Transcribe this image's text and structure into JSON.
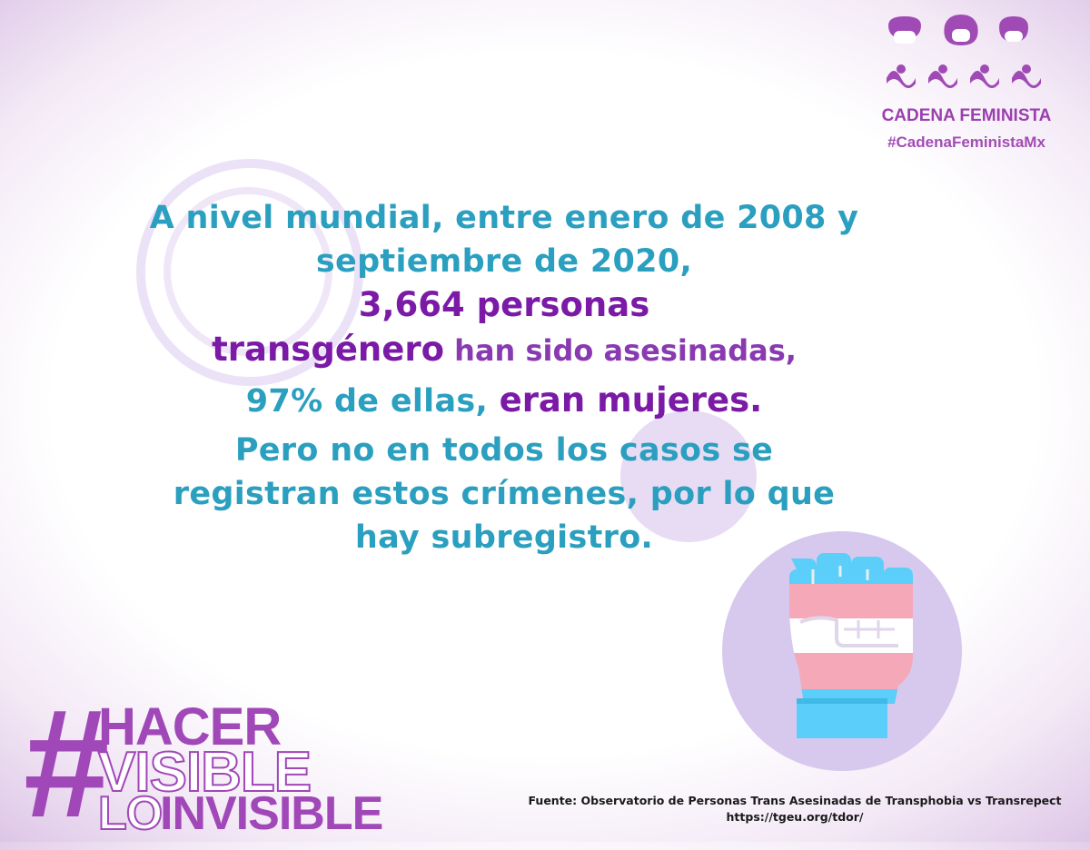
{
  "logo": {
    "name": "CADENA FEMINISTA",
    "hashtag": "#CadenaFeministaMx"
  },
  "main": {
    "line1": "A nivel mundial, entre enero de 2008 y",
    "line2": "septiembre de 2020,",
    "line3": "3,664 personas",
    "line4_a": "transgénero",
    "line4_b": " han sido asesinadas,",
    "line5_a": "97% de ellas, ",
    "line5_b": "eran mujeres.",
    "line6": "Pero no en todos los casos se",
    "line7": "registran estos crímenes, por lo que",
    "line8": "hay subregistro."
  },
  "campaign": {
    "hash": "#",
    "word1": "HACER",
    "word2": "VISIBLE",
    "word3a": "LO",
    "word3b": "INVISIBLE"
  },
  "source": {
    "text": "Fuente: Observatorio de Personas Trans Asesinadas de Transphobia vs Transrepect",
    "url": "https://tgeu.org/tdor/"
  },
  "colors": {
    "teal": "#2b9fbf",
    "purple": "#7a1aa6",
    "brand": "#a148b8",
    "trans_blue": "#5bcefa",
    "trans_pink": "#f5a9b8"
  }
}
